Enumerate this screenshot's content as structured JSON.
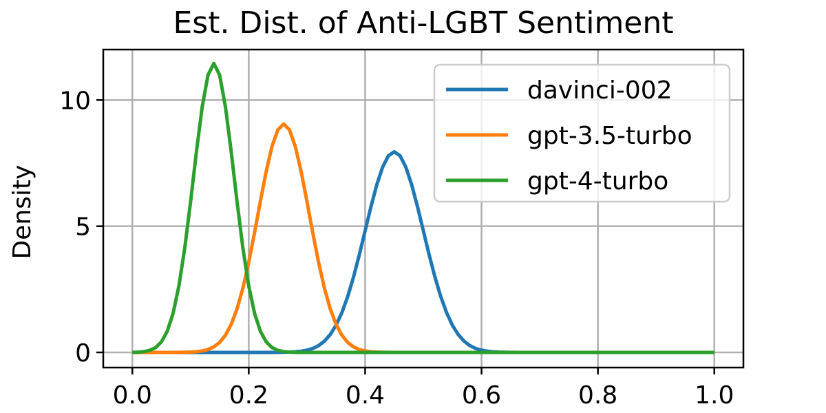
{
  "chart_data": {
    "type": "line",
    "title": "Est. Dist. of Anti-LGBT Sentiment",
    "xlabel": "",
    "ylabel": "Density",
    "xlim": [
      -0.05,
      1.05
    ],
    "ylim": [
      -0.6,
      12.0
    ],
    "xticks": [
      0.0,
      0.2,
      0.4,
      0.6,
      0.8,
      1.0
    ],
    "xtick_labels": [
      "0.0",
      "0.2",
      "0.4",
      "0.6",
      "0.8",
      "1.0"
    ],
    "yticks": [
      0,
      5,
      10
    ],
    "ytick_labels": [
      "0",
      "5",
      "10"
    ],
    "grid": true,
    "legend_position": "top-right",
    "series": [
      {
        "name": "davinci-002",
        "color": "#1f77b4",
        "distribution": "normal",
        "mean": 0.45,
        "std": 0.05,
        "peak_density": 7.95
      },
      {
        "name": "gpt-3.5-turbo",
        "color": "#ff7f0e",
        "distribution": "normal",
        "mean": 0.26,
        "std": 0.044,
        "peak_density": 9.05
      },
      {
        "name": "gpt-4-turbo",
        "color": "#2ca02c",
        "distribution": "normal",
        "mean": 0.14,
        "std": 0.035,
        "peak_density": 11.45
      }
    ],
    "x_samples": {
      "start": 0.0,
      "end": 1.0,
      "count": 101
    }
  }
}
